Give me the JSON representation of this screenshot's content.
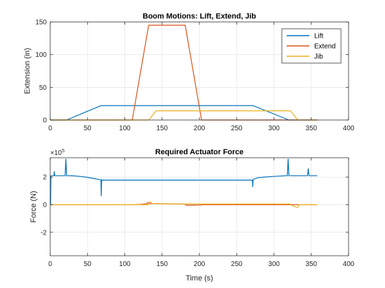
{
  "chart_data": [
    {
      "type": "line",
      "title": "Boom Motions: Lift, Extend, Jib",
      "xlabel": "",
      "ylabel": "Extension (in)",
      "xlim": [
        0,
        400
      ],
      "ylim": [
        0,
        150
      ],
      "xticks": [
        0,
        50,
        100,
        150,
        200,
        250,
        300,
        350,
        400
      ],
      "yticks": [
        0,
        50,
        100,
        150
      ],
      "grid": true,
      "legend_position": "top-right",
      "series": [
        {
          "name": "Lift",
          "color": "#0072BD",
          "x": [
            0,
            22,
            68,
            272,
            320,
            358
          ],
          "y": [
            0,
            0,
            22,
            22,
            0,
            0
          ]
        },
        {
          "name": "Extend",
          "color": "#D95319",
          "x": [
            0,
            110,
            132,
            181,
            203,
            358
          ],
          "y": [
            0,
            0,
            145,
            145,
            0,
            0
          ]
        },
        {
          "name": "Jib",
          "color": "#EDB120",
          "x": [
            0,
            132,
            142,
            322,
            332,
            358
          ],
          "y": [
            0,
            0,
            14,
            14,
            0,
            0
          ]
        }
      ]
    },
    {
      "type": "line",
      "title": "Required Actuator Force",
      "xlabel": "Time (s)",
      "ylabel": "Force (N)",
      "xlim": [
        0,
        400
      ],
      "ylim": [
        -3.7,
        3.4
      ],
      "xticks": [
        0,
        50,
        100,
        150,
        200,
        250,
        300,
        350,
        400
      ],
      "yticks": [
        -2,
        0,
        2
      ],
      "exponent_label": "×10",
      "exponent_power": "5",
      "grid": true,
      "series": [
        {
          "color": "#0072BD",
          "x": [
            0,
            0.5,
            1,
            3,
            5,
            5.5,
            6,
            10,
            20,
            21,
            22,
            23,
            30,
            40,
            50,
            60,
            66,
            68,
            68.5,
            69,
            70,
            80,
            150,
            200,
            250,
            271,
            271.5,
            272,
            273,
            280,
            300,
            318,
            319,
            320,
            321,
            330,
            345,
            346,
            347,
            350,
            358
          ],
          "y": [
            0,
            0,
            2.08,
            2.1,
            2.1,
            2.4,
            2.1,
            2.1,
            2.1,
            3.3,
            2.1,
            2.1,
            2.09,
            2.05,
            1.98,
            1.88,
            1.82,
            1.8,
            0.65,
            1.8,
            1.78,
            1.78,
            1.78,
            1.78,
            1.78,
            1.78,
            1.3,
            1.8,
            1.85,
            1.97,
            2.05,
            2.1,
            3.3,
            2.1,
            2.1,
            2.1,
            2.1,
            2.6,
            2.1,
            2.1,
            2.1
          ]
        },
        {
          "color": "#D95319",
          "x": [
            0,
            110,
            120,
            130,
            131,
            132,
            133,
            140,
            150,
            160,
            170,
            181,
            182,
            190,
            200,
            203,
            204,
            230,
            320,
            325,
            330,
            332,
            358
          ],
          "y": [
            0,
            0,
            0.02,
            0.06,
            0.18,
            0.1,
            0.08,
            0.08,
            0.07,
            0.06,
            0.05,
            0.05,
            -0.04,
            -0.04,
            -0.03,
            -0.03,
            0,
            0,
            0,
            0,
            0,
            0,
            0
          ]
        },
        {
          "color": "#EDB120",
          "x": [
            0,
            132,
            133,
            134,
            136,
            142,
            150,
            200,
            250,
            300,
            322,
            324,
            326,
            328,
            330,
            332,
            333,
            358
          ],
          "y": [
            0,
            0,
            0.12,
            0.22,
            0.1,
            0.06,
            0.06,
            0.05,
            0.05,
            0.05,
            0.05,
            -0.06,
            -0.1,
            -0.14,
            -0.18,
            -0.2,
            0,
            0
          ]
        }
      ]
    }
  ]
}
